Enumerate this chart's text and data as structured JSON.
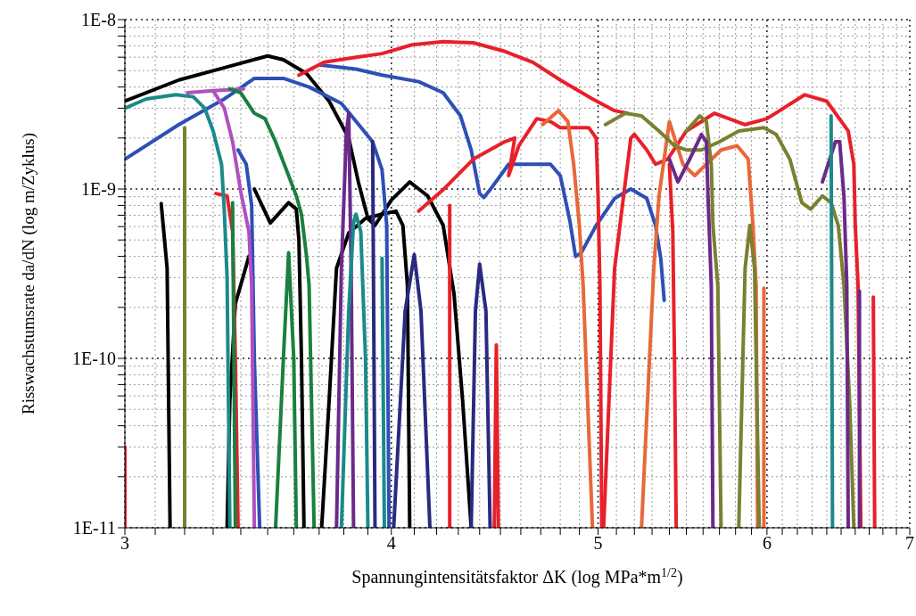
{
  "chart_data": {
    "type": "line",
    "log": "xy",
    "grid": true,
    "xlabel": "Spannungintensitätsfaktor ΔK (log MPa*m$^{1/2}$)",
    "ylabel": "Risswachstumsrate da/dN (log m/Zyklus)",
    "xlim": [
      3,
      7
    ],
    "ylim": [
      1e-11,
      1e-08
    ],
    "xticks": [
      3,
      {
        "value": 3.1,
        "label": null
      },
      {
        "value": 3.2,
        "label": null
      },
      {
        "value": 3.3,
        "label": null
      },
      {
        "value": 3.4,
        "label": null
      },
      {
        "value": 3.5,
        "label": null
      },
      {
        "value": 3.6,
        "label": null
      },
      {
        "value": 3.7,
        "label": null
      },
      {
        "value": 3.8,
        "label": null
      },
      {
        "value": 3.9,
        "label": null
      },
      4,
      {
        "value": 4.1,
        "label": null
      },
      {
        "value": 4.2,
        "label": null
      },
      {
        "value": 4.3,
        "label": null
      },
      {
        "value": 4.4,
        "label": null
      },
      {
        "value": 4.5,
        "label": null
      },
      {
        "value": 4.6,
        "label": null
      },
      {
        "value": 4.7,
        "label": null
      },
      {
        "value": 4.8,
        "label": null
      },
      {
        "value": 4.9,
        "label": null
      },
      5,
      {
        "value": 5.1,
        "label": null
      },
      {
        "value": 5.2,
        "label": null
      },
      {
        "value": 5.3,
        "label": null
      },
      {
        "value": 5.4,
        "label": null
      },
      {
        "value": 5.5,
        "label": null
      },
      {
        "value": 5.6,
        "label": null
      },
      {
        "value": 5.7,
        "label": null
      },
      {
        "value": 5.8,
        "label": null
      },
      {
        "value": 5.9,
        "label": null
      },
      6,
      {
        "value": 6.1,
        "label": null
      },
      {
        "value": 6.2,
        "label": null
      },
      {
        "value": 6.3,
        "label": null
      },
      {
        "value": 6.4,
        "label": null
      },
      {
        "value": 6.5,
        "label": null
      },
      {
        "value": 6.6,
        "label": null
      },
      {
        "value": 6.7,
        "label": null
      },
      {
        "value": 6.8,
        "label": null
      },
      {
        "value": 6.9,
        "label": null
      },
      7
    ],
    "yticks": [
      {
        "value": 1e-11,
        "label": "1E-11"
      },
      {
        "value": 2e-11,
        "label": null
      },
      {
        "value": 3e-11,
        "label": null
      },
      {
        "value": 4e-11,
        "label": null
      },
      {
        "value": 5e-11,
        "label": null
      },
      {
        "value": 6e-11,
        "label": null
      },
      {
        "value": 7e-11,
        "label": null
      },
      {
        "value": 8e-11,
        "label": null
      },
      {
        "value": 9e-11,
        "label": null
      },
      {
        "value": 1e-10,
        "label": "1E-10"
      },
      {
        "value": 2e-10,
        "label": null
      },
      {
        "value": 3e-10,
        "label": null
      },
      {
        "value": 4e-10,
        "label": null
      },
      {
        "value": 5e-10,
        "label": null
      },
      {
        "value": 6e-10,
        "label": null
      },
      {
        "value": 7e-10,
        "label": null
      },
      {
        "value": 8e-10,
        "label": null
      },
      {
        "value": 9e-10,
        "label": null
      },
      {
        "value": 1e-09,
        "label": "1E-9"
      },
      {
        "value": 2e-09,
        "label": null
      },
      {
        "value": 3e-09,
        "label": null
      },
      {
        "value": 4e-09,
        "label": null
      },
      {
        "value": 5e-09,
        "label": null
      },
      {
        "value": 6e-09,
        "label": null
      },
      {
        "value": 7e-09,
        "label": null
      },
      {
        "value": 8e-09,
        "label": null
      },
      {
        "value": 9e-09,
        "label": null
      },
      {
        "value": 1e-08,
        "label": "1E-8"
      }
    ],
    "series": [
      {
        "color": "#000000",
        "x": [
          3.0,
          3.18,
          3.5,
          3.56,
          3.65,
          3.74,
          3.82,
          3.86,
          3.9,
          3.93,
          4.0,
          4.08,
          4.16,
          4.23,
          4.28,
          4.32,
          4.36
        ],
        "values": [
          3.3e-09,
          4.4e-09,
          6.1e-09,
          5.8e-09,
          4.8e-09,
          3.3e-09,
          2e-09,
          1.1e-09,
          6.7e-10,
          6.1e-10,
          8.6e-10,
          1.1e-09,
          9.1e-10,
          6.1e-10,
          2.4e-10,
          5.6e-11,
          1e-11
        ]
      },
      {
        "color": "#000000",
        "x": [
          3.71,
          3.74,
          3.77,
          3.82,
          3.89,
          3.96,
          4.02,
          4.05,
          4.07,
          4.08
        ],
        "values": [
          1e-11,
          5.6e-11,
          3.4e-10,
          5.5e-10,
          6.7e-10,
          7.1e-10,
          7.4e-10,
          6.1e-10,
          2.7e-10,
          1e-11
        ]
      },
      {
        "color": "#000000",
        "x": [
          3.45,
          3.51,
          3.58,
          3.61,
          3.62,
          3.63,
          3.64
        ],
        "values": [
          1e-09,
          6.3e-10,
          8.3e-10,
          7.6e-10,
          5e-10,
          1e-10,
          1e-11
        ]
      },
      {
        "color": "#000000",
        "x": [
          3.12,
          3.14,
          3.15
        ],
        "values": [
          8.2e-10,
          3.4e-10,
          1e-11
        ]
      },
      {
        "color": "#000000",
        "x": [
          3.35,
          3.36,
          3.38,
          3.43
        ],
        "values": [
          1e-11,
          5.6e-11,
          2.1e-10,
          4e-10
        ]
      },
      {
        "color": "#7a8030",
        "x": [
          3.2,
          3.2
        ],
        "values": [
          2.3e-09,
          1e-11
        ]
      },
      {
        "color": "#2e4fb5",
        "x": [
          3.0,
          3.18,
          3.34,
          3.45,
          3.56,
          3.66,
          3.79,
          3.92,
          3.96,
          3.98,
          3.99
        ],
        "values": [
          1.5e-09,
          2.4e-09,
          3.4e-09,
          4.5e-09,
          4.5e-09,
          4e-09,
          3.2e-09,
          1.9e-09,
          1.3e-09,
          6.1e-10,
          1e-11
        ]
      },
      {
        "color": "#2e4fb5",
        "x": [
          3.39,
          3.42,
          3.44,
          3.45,
          3.47
        ],
        "values": [
          1.7e-09,
          1.4e-09,
          8e-10,
          1e-10,
          1e-11
        ]
      },
      {
        "color": "#2e4fb5",
        "x": [
          3.7,
          3.85,
          3.96,
          4.12,
          4.23,
          4.31,
          4.36,
          4.4,
          4.42,
          4.45,
          4.54,
          4.66,
          4.75,
          4.8,
          4.85,
          4.88,
          4.91,
          4.99,
          5.09,
          5.18,
          5.27,
          5.32,
          5.35,
          5.37
        ],
        "values": [
          5.4e-09,
          5.1e-09,
          4.7e-09,
          4.3e-09,
          3.7e-09,
          2.7e-09,
          1.7e-09,
          9.4e-10,
          8.9e-10,
          9.9e-10,
          1.4e-09,
          1.4e-09,
          1.4e-09,
          1.2e-09,
          6.5e-10,
          4e-10,
          4.2e-10,
          6.1e-10,
          8.8e-10,
          1e-09,
          8.8e-10,
          6.1e-10,
          3.9e-10,
          2.2e-10
        ]
      },
      {
        "color": "#e8202a",
        "x": [
          3.62,
          3.72,
          3.85,
          3.96,
          4.09,
          4.23,
          4.37,
          4.52,
          4.66,
          4.8,
          4.97,
          5.09,
          5.16
        ],
        "values": [
          4.7e-09,
          5.6e-09,
          6e-09,
          6.3e-09,
          7.1e-09,
          7.4e-09,
          7.3e-09,
          6.5e-09,
          5.6e-09,
          4.4e-09,
          3.4e-09,
          2.9e-09,
          2.8e-09
        ]
      },
      {
        "color": "#e8202a",
        "x": [
          5.03,
          5.09,
          5.18,
          5.2,
          5.27,
          5.32,
          5.39,
          5.5,
          5.67,
          5.86,
          6.0,
          6.25,
          6.4,
          6.55,
          6.59,
          6.6,
          6.62,
          6.64
        ],
        "values": [
          1e-11,
          3.4e-10,
          2e-09,
          2.1e-09,
          1.7e-09,
          1.4e-09,
          1.5e-09,
          2.2e-09,
          2.8e-09,
          2.4e-09,
          2.6e-09,
          3.6e-09,
          3.3e-09,
          2.2e-09,
          1.4e-09,
          6.1e-10,
          2.7e-10,
          1e-11
        ]
      },
      {
        "color": "#e8202a",
        "x": [
          4.12,
          4.23,
          4.37,
          4.52,
          4.57,
          4.54,
          4.59,
          4.68,
          4.75,
          4.8,
          4.95,
          4.99,
          5.0,
          5.01,
          5.02
        ],
        "values": [
          7.4e-10,
          9.9e-10,
          1.5e-09,
          1.9e-09,
          2e-09,
          1.2e-09,
          1.8e-09,
          2.6e-09,
          2.5e-09,
          2.3e-09,
          2.3e-09,
          2e-09,
          9.1e-10,
          2.7e-10,
          1e-11
        ]
      },
      {
        "color": "#e8202a",
        "x": [
          4.26,
          4.26
        ],
        "values": [
          8e-10,
          1e-11
        ]
      },
      {
        "color": "#e8202a",
        "x": [
          4.47,
          4.48,
          4.49
        ],
        "values": [
          1e-11,
          1.2e-10,
          1e-11
        ]
      },
      {
        "color": "#e8202a",
        "x": [
          3.31,
          3.35,
          3.37,
          3.38,
          3.39
        ],
        "values": [
          9.4e-10,
          9.1e-10,
          5.6e-10,
          1e-10,
          1e-11
        ]
      },
      {
        "color": "#e8202a",
        "x": [
          3.0,
          3.0
        ],
        "values": [
          1e-11,
          3e-11
        ]
      },
      {
        "color": "#e8202a",
        "x": [
          5.4,
          5.42,
          5.43,
          5.44
        ],
        "values": [
          1.4e-09,
          5.6e-10,
          1e-10,
          1e-11
        ]
      },
      {
        "color": "#e8202a",
        "x": [
          6.73,
          6.74
        ],
        "values": [
          2.3e-10,
          1e-11
        ]
      },
      {
        "color": "#e8683a",
        "x": [
          4.71,
          4.79,
          4.84,
          4.87,
          4.9,
          4.92,
          4.97
        ],
        "values": [
          2.4e-09,
          2.9e-09,
          2.5e-09,
          1.4e-09,
          6.1e-10,
          2.7e-10,
          1e-11
        ]
      },
      {
        "color": "#e8683a",
        "x": [
          5.24,
          5.31,
          5.34,
          5.4,
          5.43,
          5.48,
          5.55,
          5.62,
          5.71,
          5.81,
          5.88,
          5.91,
          5.93,
          5.94
        ],
        "values": [
          1e-11,
          3.4e-10,
          9.1e-10,
          2.5e-09,
          2e-09,
          1.4e-09,
          1.2e-09,
          1.4e-09,
          1.7e-09,
          1.8e-09,
          1.5e-09,
          6.1e-10,
          2.7e-10,
          1e-11
        ]
      },
      {
        "color": "#e8683a",
        "x": [
          5.98,
          5.98
        ],
        "values": [
          2.6e-10,
          1e-11
        ]
      },
      {
        "color": "#7a8030",
        "x": [
          5.04,
          5.15,
          5.24,
          5.34,
          5.43,
          5.5,
          5.59,
          5.7,
          5.82,
          5.98,
          6.06,
          6.15,
          6.23,
          6.29,
          6.37,
          6.43,
          6.48,
          6.52,
          6.56,
          6.59
        ],
        "values": [
          2.4e-09,
          2.8e-09,
          2.7e-09,
          2.2e-09,
          1.8e-09,
          1.7e-09,
          1.7e-09,
          1.9e-09,
          2.2e-09,
          2.3e-09,
          2.1e-09,
          1.5e-09,
          8.3e-10,
          7.6e-10,
          9.1e-10,
          8.3e-10,
          6.1e-10,
          2.7e-10,
          5.6e-11,
          1e-11
        ]
      },
      {
        "color": "#7a8030",
        "x": [
          5.5,
          5.58,
          5.62,
          5.65,
          5.66,
          5.69,
          5.71
        ],
        "values": [
          2.2e-09,
          2.7e-09,
          2.5e-09,
          1.4e-09,
          6.1e-10,
          2.7e-10,
          1e-11
        ]
      },
      {
        "color": "#7a8030",
        "x": [
          5.82,
          5.86,
          5.89,
          5.92,
          5.95
        ],
        "values": [
          1e-11,
          3.4e-10,
          6.1e-10,
          3.4e-10,
          1e-11
        ]
      },
      {
        "color": "#6a2a8a",
        "x": [
          5.4,
          5.45,
          5.52,
          5.59,
          5.62,
          5.63,
          5.65,
          5.66
        ],
        "values": [
          1.5e-09,
          1.1e-09,
          1.5e-09,
          2.1e-09,
          1.9e-09,
          9.1e-10,
          2.7e-10,
          1e-11
        ]
      },
      {
        "color": "#6a2a8a",
        "x": [
          6.37,
          6.46,
          6.49,
          6.52,
          6.54,
          6.55
        ],
        "values": [
          1.1e-09,
          1.9e-09,
          1.9e-09,
          9.1e-10,
          2.7e-10,
          1e-11
        ]
      },
      {
        "color": "#6a2a8a",
        "x": [
          6.63,
          6.63
        ],
        "values": [
          2.5e-10,
          1e-11
        ]
      },
      {
        "color": "#6a2a8a",
        "x": [
          3.77,
          3.79,
          3.81,
          3.82,
          3.83,
          3.84
        ],
        "values": [
          1e-11,
          3.4e-10,
          2.1e-09,
          2.8e-09,
          3.4e-10,
          1e-11
        ]
      },
      {
        "color": "#b050c0",
        "x": [
          3.21,
          3.3,
          3.41
        ],
        "values": [
          3.7e-09,
          3.8e-09,
          3.9e-09
        ]
      },
      {
        "color": "#b050c0",
        "x": [
          3.3,
          3.34,
          3.37,
          3.4,
          3.43,
          3.44,
          3.45
        ],
        "values": [
          3.8e-09,
          3e-09,
          1.9e-09,
          9.6e-10,
          5.6e-10,
          2.7e-10,
          1e-11
        ]
      },
      {
        "color": "#1a8a8a",
        "x": [
          3.0,
          3.07,
          3.17,
          3.23,
          3.27,
          3.3,
          3.33,
          3.34,
          3.35,
          3.36
        ],
        "values": [
          3e-09,
          3.4e-09,
          3.6e-09,
          3.5e-09,
          3e-09,
          2.2e-09,
          1.4e-09,
          7.4e-10,
          3e-10,
          1e-11
        ]
      },
      {
        "color": "#1a8a8a",
        "x": [
          3.79,
          3.82,
          3.84,
          3.85,
          3.87,
          3.89,
          3.9
        ],
        "values": [
          1e-11,
          1.9e-10,
          6.3e-10,
          7.1e-10,
          5.6e-10,
          1e-10,
          1e-11
        ]
      },
      {
        "color": "#1a8a8a",
        "x": [
          3.96,
          3.97
        ],
        "values": [
          3.9e-10,
          1e-11
        ]
      },
      {
        "color": "#1a8a8a",
        "x": [
          6.43,
          6.44
        ],
        "values": [
          2.7e-09,
          1e-11
        ]
      },
      {
        "color": "#1a8040",
        "x": [
          3.36,
          3.4,
          3.45,
          3.49,
          3.53,
          3.58,
          3.61,
          3.63,
          3.65,
          3.66,
          3.68
        ],
        "values": [
          3.9e-09,
          3.7e-09,
          2.8e-09,
          2.6e-09,
          1.9e-09,
          1.2e-09,
          9.1e-10,
          7.1e-10,
          4e-10,
          2.7e-10,
          1e-11
        ]
      },
      {
        "color": "#1a8040",
        "x": [
          3.37,
          3.38
        ],
        "values": [
          8.3e-10,
          1e-11
        ]
      },
      {
        "color": "#1a8040",
        "x": [
          3.53,
          3.56,
          3.58,
          3.6,
          3.61
        ],
        "values": [
          1e-11,
          1e-10,
          4.2e-10,
          1e-10,
          1e-11
        ]
      },
      {
        "color": "#2a2a80",
        "x": [
          3.92,
          3.93
        ],
        "values": [
          1.9e-09,
          1e-11
        ]
      },
      {
        "color": "#2a2a80",
        "x": [
          4.01,
          4.06,
          4.1,
          4.13,
          4.17
        ],
        "values": [
          1e-11,
          1.9e-10,
          4.1e-10,
          1.9e-10,
          1e-11
        ]
      },
      {
        "color": "#2a2a80",
        "x": [
          4.36,
          4.38,
          4.4,
          4.43,
          4.45
        ],
        "values": [
          1e-11,
          1.9e-10,
          3.6e-10,
          1.9e-10,
          1e-11
        ]
      }
    ]
  }
}
